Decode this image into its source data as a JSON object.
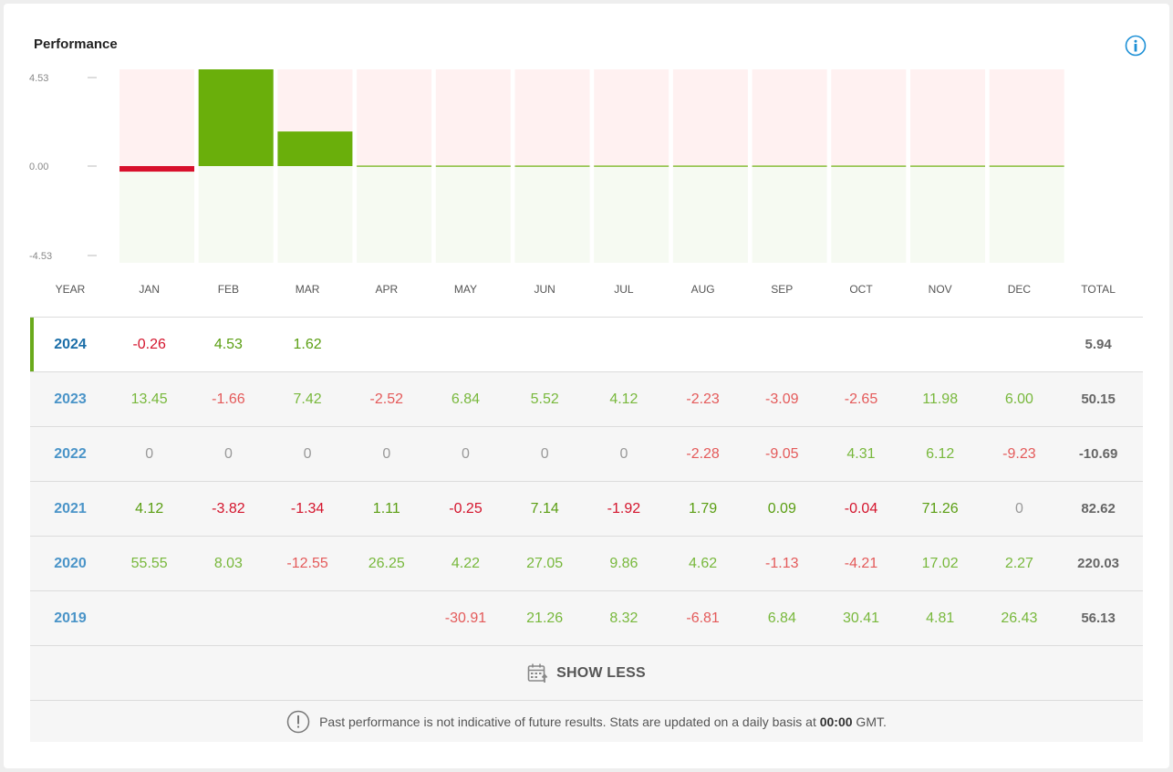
{
  "header": {
    "title": "Performance"
  },
  "colors": {
    "positive_bar": "#6aaf0b",
    "negative_bar": "#d8102c",
    "positive_bg": "#f6faf2",
    "negative_bg": "#fff1f1"
  },
  "chart_data": {
    "type": "bar",
    "categories": [
      "JAN",
      "FEB",
      "MAR",
      "APR",
      "MAY",
      "JUN",
      "JUL",
      "AUG",
      "SEP",
      "OCT",
      "NOV",
      "DEC"
    ],
    "values": [
      -0.26,
      4.53,
      1.62,
      0,
      0,
      0,
      0,
      0,
      0,
      0,
      0,
      0
    ],
    "ylim": [
      -4.53,
      4.53
    ],
    "y_ticks": [
      "4.53",
      "0.00",
      "-4.53"
    ]
  },
  "table": {
    "headers": [
      "YEAR",
      "JAN",
      "FEB",
      "MAR",
      "APR",
      "MAY",
      "JUN",
      "JUL",
      "AUG",
      "SEP",
      "OCT",
      "NOV",
      "DEC",
      "TOTAL"
    ],
    "rows": [
      {
        "year": "2024",
        "cells": [
          "-0.26",
          "4.53",
          "1.62",
          "",
          "",
          "",
          "",
          "",
          "",
          "",
          "",
          ""
        ],
        "total": "5.94"
      },
      {
        "year": "2023",
        "cells": [
          "13.45",
          "-1.66",
          "7.42",
          "-2.52",
          "6.84",
          "5.52",
          "4.12",
          "-2.23",
          "-3.09",
          "-2.65",
          "11.98",
          "6.00"
        ],
        "total": "50.15"
      },
      {
        "year": "2022",
        "cells": [
          "0",
          "0",
          "0",
          "0",
          "0",
          "0",
          "0",
          "-2.28",
          "-9.05",
          "4.31",
          "6.12",
          "-9.23"
        ],
        "total": "-10.69"
      },
      {
        "year": "2021",
        "cells": [
          "4.12",
          "-3.82",
          "-1.34",
          "1.11",
          "-0.25",
          "7.14",
          "-1.92",
          "1.79",
          "0.09",
          "-0.04",
          "71.26",
          "0"
        ],
        "total": "82.62"
      },
      {
        "year": "2020",
        "cells": [
          "55.55",
          "8.03",
          "-12.55",
          "26.25",
          "4.22",
          "27.05",
          "9.86",
          "4.62",
          "-1.13",
          "-4.21",
          "17.02",
          "2.27"
        ],
        "total": "220.03"
      },
      {
        "year": "2019",
        "cells": [
          "",
          "",
          "",
          "",
          "-30.91",
          "21.26",
          "8.32",
          "-6.81",
          "6.84",
          "30.41",
          "4.81",
          "26.43"
        ],
        "total": "56.13"
      }
    ]
  },
  "show_less": {
    "label": "SHOW LESS",
    "icon": "calendar-icon"
  },
  "disclaimer": {
    "icon": "exclamation-icon",
    "text_before": "Past performance is not indicative of future results. Stats are updated on a daily basis at ",
    "time": "00:00",
    "text_after": " GMT."
  }
}
